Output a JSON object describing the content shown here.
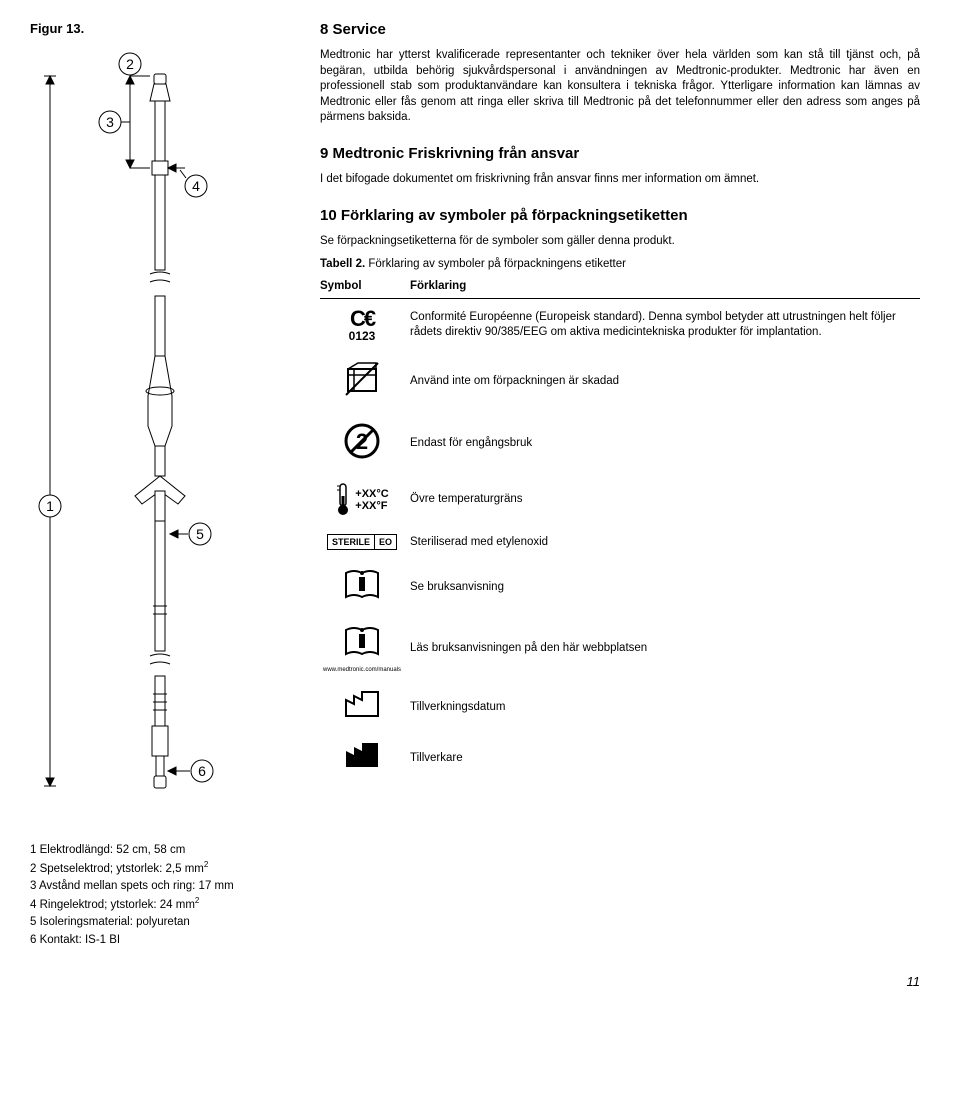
{
  "figure": {
    "label": "Figur 13.",
    "callouts": [
      "1",
      "2",
      "3",
      "4",
      "5",
      "6"
    ],
    "legend": [
      "1 Elektrodlängd: 52 cm, 58 cm",
      "2 Spetselektrod; ytstorlek: 2,5 mm²",
      "3 Avstånd mellan spets och ring: 17 mm",
      "4 Ringelektrod; ytstorlek: 24 mm²",
      "5 Isoleringsmaterial: polyuretan",
      "6 Kontakt: IS-1 BI"
    ]
  },
  "sections": {
    "s8": {
      "heading": "8  Service",
      "p1": "Medtronic har ytterst kvalificerade representanter och tekniker över hela världen som kan stå till tjänst och, på begäran, utbilda behörig sjukvårdspersonal i användningen av Medtronic-produkter. Medtronic har även en professionell stab som produktanvändare kan konsultera i tekniska frågor. Ytterligare information kan lämnas av Medtronic eller fås genom att ringa eller skriva till Medtronic på det telefonnummer eller den adress som anges på pärmens baksida."
    },
    "s9": {
      "heading": "9  Medtronic Friskrivning från ansvar",
      "p1": "I det bifogade dokumentet om friskrivning från ansvar finns mer information om ämnet."
    },
    "s10": {
      "heading": "10  Förklaring av symboler på förpackningsetiketten",
      "p1": "Se förpackningsetiketterna för de symboler som gäller denna produkt."
    }
  },
  "table": {
    "caption_bold": "Tabell 2.",
    "caption_rest": " Förklaring av symboler på förpackningens etiketter",
    "col1": "Symbol",
    "col2": "Förklaring",
    "rows": [
      {
        "symbol_type": "ce",
        "ce_num": "0123",
        "text": "Conformité Européenne (Europeisk standard). Denna symbol betyder att utrustningen helt följer rådets direktiv 90/385/EEG om aktiva medicintekniska produkter för implantation."
      },
      {
        "symbol_type": "nobox",
        "text": "Använd inte om förpackningen är skadad"
      },
      {
        "symbol_type": "no2",
        "text": "Endast för engångsbruk"
      },
      {
        "symbol_type": "temp",
        "t1": "+XX°C",
        "t2": "+XX°F",
        "text": "Övre temperaturgräns"
      },
      {
        "symbol_type": "sterile",
        "s1": "STERILE",
        "s2": "EO",
        "text": "Steriliserad med etylenoxid"
      },
      {
        "symbol_type": "book-i",
        "text": "Se bruksanvisning"
      },
      {
        "symbol_type": "book-i-web",
        "url": "www.medtronic.com/manuals",
        "text": "Läs bruksanvisningen på den här webbplatsen"
      },
      {
        "symbol_type": "factory-outline",
        "text": "Tillverkningsdatum"
      },
      {
        "symbol_type": "factory-solid",
        "text": "Tillverkare"
      }
    ]
  },
  "page_number": "11"
}
